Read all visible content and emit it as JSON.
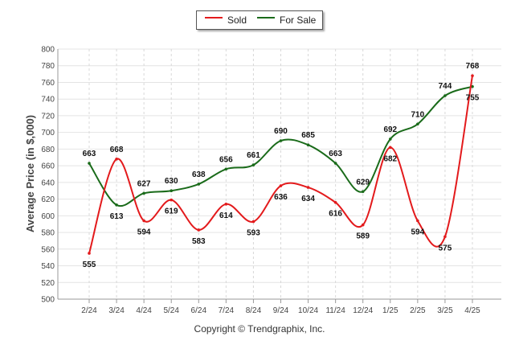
{
  "chart_data": {
    "type": "line",
    "categories": [
      "2/24",
      "3/24",
      "4/24",
      "5/24",
      "6/24",
      "7/24",
      "8/24",
      "9/24",
      "10/24",
      "11/24",
      "12/24",
      "1/25",
      "2/25",
      "3/25",
      "4/25"
    ],
    "series": [
      {
        "name": "Sold",
        "color": "#e31a1c",
        "values": [
          555,
          668,
          594,
          619,
          583,
          614,
          593,
          636,
          634,
          616,
          589,
          682,
          594,
          575,
          768
        ]
      },
      {
        "name": "For Sale",
        "color": "#1a6b1a",
        "values": [
          663,
          613,
          627,
          630,
          638,
          656,
          661,
          690,
          685,
          663,
          629,
          692,
          710,
          744,
          755
        ]
      }
    ],
    "ylabel": "Average Price (in $,000)",
    "ylim": [
      500,
      800
    ],
    "ytick_step": 20,
    "grid": true,
    "legend": "top-center"
  },
  "legend": {
    "sold": "Sold",
    "for_sale": "For Sale"
  },
  "footer": "Copyright © Trendgraphix, Inc."
}
